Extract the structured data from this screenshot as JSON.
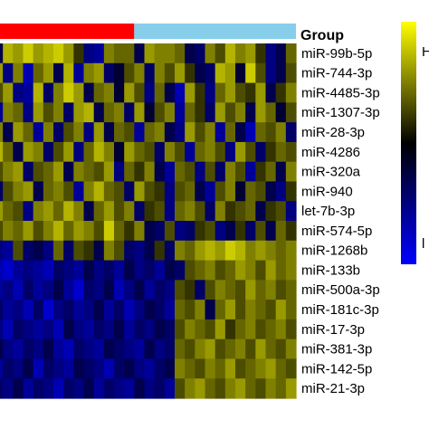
{
  "chart_data": {
    "type": "heatmap",
    "group_label": "Group",
    "groups": [
      {
        "color": "#ff0000",
        "columns": 14
      },
      {
        "color": "#87ceeb",
        "columns": 16
      }
    ],
    "rows": [
      "miR-99b-5p",
      "miR-744-3p",
      "miR-4485-3p",
      "miR-1307-3p",
      "miR-28-3p",
      "miR-4286",
      "miR-320a",
      "miR-940",
      "let-7b-3p",
      "miR-574-5p",
      "miR-1268b",
      "miR-133b",
      "miR-500a-3p",
      "miR-181c-3p",
      "miR-17-3p",
      "miR-381-3p",
      "miR-142-5p",
      "miR-21-3p"
    ],
    "color_scale": {
      "high_color": "#ffff00",
      "mid_color": "#000000",
      "low_color": "#0000ff",
      "high_label": "H",
      "low_label": "l"
    },
    "values": [
      [
        -0.3,
        0.7,
        0.6,
        0.8,
        0.6,
        0.7,
        0.8,
        0.6,
        0.2,
        -0.5,
        -0.6,
        0.5,
        0.4,
        0.4,
        -0.3,
        0.6,
        0.5,
        0.5,
        0.4,
        -0.3,
        -0.4,
        0.5,
        0.3,
        0.7,
        0.5,
        0.6,
        0.2,
        -0.5,
        -0.3,
        0.4
      ],
      [
        0.6,
        -0.5,
        0.5,
        -0.7,
        0.4,
        0.6,
        -0.3,
        0.7,
        -0.6,
        0.5,
        0.6,
        -0.4,
        -0.2,
        0.3,
        0.5,
        -0.4,
        0.5,
        0.3,
        0.6,
        0.2,
        -0.3,
        -0.4,
        0.7,
        0.6,
        -0.2,
        0.8,
        0.3,
        -0.5,
        -0.3,
        0.3
      ],
      [
        0.3,
        0.6,
        -0.5,
        -0.6,
        0.7,
        -0.4,
        0.5,
        0.8,
        0.6,
        -0.3,
        0.4,
        0.5,
        -0.2,
        0.6,
        0.3,
        -0.5,
        0.4,
        -0.3,
        -0.7,
        0.6,
        0.2,
        -0.5,
        0.4,
        0.6,
        0.3,
        0.2,
        0.6,
        -0.3,
        0.2,
        0.5
      ],
      [
        -0.6,
        0.5,
        0.4,
        -0.5,
        0.6,
        0.3,
        0.5,
        -0.4,
        0.6,
        0.7,
        -0.3,
        0.4,
        0.5,
        -0.4,
        0.6,
        -0.2,
        0.3,
        0.5,
        -0.6,
        0.4,
        0.2,
        -0.4,
        0.6,
        0.3,
        0.5,
        -0.3,
        0.6,
        0.4,
        -0.2,
        0.3
      ],
      [
        0.5,
        -0.3,
        0.6,
        0.4,
        -0.6,
        0.5,
        -0.4,
        0.3,
        0.5,
        -0.5,
        0.6,
        -0.3,
        0.4,
        0.3,
        -0.6,
        0.4,
        0.5,
        -0.3,
        -0.5,
        0.6,
        0.3,
        0.5,
        -0.6,
        0.4,
        -0.3,
        -0.7,
        0.4,
        0.3,
        0.5,
        -0.4
      ],
      [
        0.7,
        0.4,
        -0.3,
        0.6,
        0.5,
        -0.4,
        0.3,
        0.6,
        -0.5,
        0.4,
        0.7,
        0.5,
        -0.2,
        0.6,
        0.4,
        0.3,
        -0.4,
        0.5,
        0.3,
        -0.6,
        0.4,
        0.5,
        0.3,
        -0.5,
        0.6,
        0.3,
        -0.4,
        0.2,
        0.4,
        0.3
      ],
      [
        0.3,
        0.5,
        0.6,
        -0.4,
        0.3,
        0.4,
        0.6,
        -0.3,
        0.5,
        0.4,
        0.3,
        0.6,
        -0.5,
        0.4,
        0.2,
        0.5,
        -0.3,
        -0.6,
        0.4,
        0.3,
        -0.5,
        0.3,
        -0.4,
        0.5,
        0.3,
        -0.6,
        0.2,
        0.4,
        -0.3,
        0.5
      ],
      [
        -0.4,
        0.3,
        0.5,
        0.6,
        -0.3,
        0.4,
        0.5,
        0.3,
        -0.6,
        0.5,
        0.7,
        0.4,
        0.3,
        -0.4,
        0.6,
        0.3,
        0.2,
        -0.5,
        0.3,
        0.4,
        -0.3,
        -0.6,
        0.3,
        0.5,
        -0.2,
        0.4,
        0.3,
        -0.3,
        -0.5,
        0.2
      ],
      [
        0.6,
        0.4,
        0.3,
        -0.5,
        0.5,
        0.6,
        0.4,
        0.7,
        0.5,
        -0.3,
        0.4,
        0.6,
        0.3,
        0.5,
        -0.4,
        0.2,
        0.3,
        -0.5,
        0.4,
        0.5,
        0.3,
        -0.4,
        0.5,
        0.2,
        0.3,
        0.4,
        -0.3,
        0.2,
        0.3,
        -0.5
      ],
      [
        0.3,
        0.5,
        0.4,
        0.6,
        0.3,
        0.5,
        0.7,
        0.4,
        0.6,
        0.5,
        0.3,
        0.8,
        0.4,
        0.2,
        0.5,
        -0.3,
        -0.4,
        0.3,
        -0.5,
        -0.4,
        0.2,
        0.3,
        -0.5,
        -0.3,
        0.2,
        -0.4,
        0.3,
        -0.3,
        0.4,
        0.2
      ],
      [
        -0.5,
        -0.6,
        0.3,
        -0.4,
        -0.3,
        -0.5,
        0.4,
        -0.4,
        0.3,
        0.2,
        -0.3,
        0.5,
        0.3,
        -0.4,
        -0.5,
        -0.3,
        0.2,
        -0.4,
        0.5,
        0.4,
        0.6,
        0.7,
        0.6,
        0.8,
        0.7,
        0.5,
        0.6,
        0.5,
        0.4,
        0.5
      ],
      [
        -0.7,
        -0.8,
        -0.6,
        -0.5,
        -0.6,
        -0.7,
        -0.4,
        -0.5,
        -0.6,
        -0.3,
        -0.5,
        -0.4,
        -0.6,
        -0.3,
        -0.5,
        -0.4,
        -0.6,
        -0.3,
        -0.4,
        0.3,
        0.4,
        0.5,
        0.3,
        0.4,
        0.6,
        0.5,
        0.3,
        0.6,
        0.4,
        0.5
      ],
      [
        -0.6,
        -0.5,
        -0.7,
        -0.4,
        -0.6,
        -0.5,
        -0.3,
        -0.6,
        -0.8,
        -0.4,
        -0.5,
        -0.3,
        -0.7,
        -0.5,
        -0.3,
        -0.6,
        -0.4,
        -0.5,
        0.3,
        0.2,
        -0.4,
        0.3,
        0.5,
        0.4,
        0.3,
        0.6,
        0.4,
        0.5,
        0.3,
        0.4
      ],
      [
        -0.4,
        -0.6,
        -0.5,
        -0.7,
        -0.4,
        -0.8,
        -0.5,
        -0.4,
        -0.6,
        -0.5,
        -0.3,
        -0.6,
        -0.4,
        -0.7,
        -0.5,
        -0.3,
        -0.4,
        -0.6,
        0.4,
        0.3,
        0.5,
        -0.3,
        0.4,
        0.6,
        0.3,
        0.5,
        0.4,
        0.3,
        0.6,
        0.4
      ],
      [
        -0.5,
        -0.7,
        -0.4,
        -0.5,
        -0.6,
        -0.5,
        -0.7,
        -0.3,
        -0.5,
        -0.6,
        -0.4,
        -0.5,
        -0.3,
        -0.6,
        -0.4,
        -0.5,
        -0.3,
        -0.4,
        0.3,
        0.5,
        0.4,
        0.3,
        0.6,
        0.2,
        0.4,
        0.5,
        0.3,
        0.4,
        0.5,
        0.3
      ],
      [
        -0.3,
        -0.5,
        -0.6,
        -0.4,
        -0.5,
        -0.3,
        -0.6,
        -0.7,
        -0.4,
        -0.5,
        -0.6,
        -0.3,
        -0.4,
        -0.5,
        -0.6,
        -0.3,
        -0.5,
        -0.4,
        0.4,
        0.3,
        0.5,
        0.6,
        0.3,
        0.4,
        0.5,
        0.3,
        0.6,
        0.4,
        0.3,
        0.5
      ],
      [
        -0.6,
        -0.4,
        -0.5,
        -0.3,
        -0.7,
        -0.4,
        -0.5,
        -0.6,
        -0.3,
        -0.4,
        -0.5,
        -0.7,
        -0.4,
        -0.3,
        -0.5,
        -0.6,
        -0.4,
        -0.3,
        0.5,
        0.4,
        0.3,
        0.5,
        0.4,
        0.6,
        0.3,
        0.4,
        0.5,
        0.6,
        0.4,
        0.3
      ],
      [
        -0.4,
        -0.5,
        -0.3,
        -0.6,
        -0.4,
        -0.5,
        -0.7,
        -0.4,
        -0.5,
        -0.3,
        -0.6,
        -0.4,
        -0.5,
        -0.6,
        -0.3,
        -0.5,
        -0.4,
        -0.6,
        0.3,
        0.5,
        0.6,
        0.4,
        0.3,
        0.5,
        0.6,
        0.4,
        0.3,
        0.5,
        0.4,
        0.6
      ]
    ]
  }
}
